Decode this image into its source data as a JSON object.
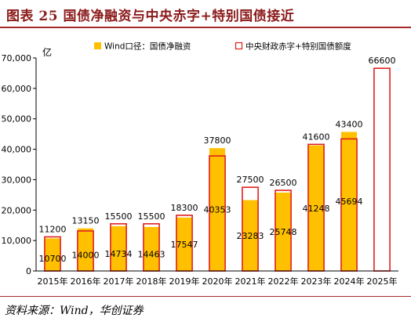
{
  "figure": {
    "title": "图表 25    国债净融资与中央赤字+特别国债接近",
    "source": "资料来源：Wind，华创证券"
  },
  "colors": {
    "title": "#8b1a1a",
    "rule": "#a52a2a",
    "bar_fill": "#ffc000",
    "outline": "#e0201e"
  },
  "chart_data": {
    "type": "bar",
    "unit_label": "亿",
    "categories": [
      "2015年",
      "2016年",
      "2017年",
      "2018年",
      "2019年",
      "2020年",
      "2021年",
      "2022年",
      "2023年",
      "2024年",
      "2025年"
    ],
    "ylim": [
      0,
      70000
    ],
    "yticks": [
      0,
      10000,
      20000,
      30000,
      40000,
      50000,
      60000,
      70000
    ],
    "ytick_labels": [
      "0",
      "10,000",
      "20,000",
      "30,000",
      "40,000",
      "50,000",
      "60,000",
      "70,000"
    ],
    "legend_position": "top",
    "series": [
      {
        "name": "Wind口径：国债净融资",
        "style": "filled",
        "values": [
          10700,
          14000,
          14734,
          14463,
          17547,
          40353,
          23283,
          25748,
          41248,
          45694,
          null
        ],
        "labels": [
          "10700",
          "14000",
          "14734",
          "14463",
          "17547",
          "40353",
          "23283",
          "25748",
          "41248",
          "45694",
          ""
        ]
      },
      {
        "name": "中央财政赤字+特别国债额度",
        "style": "outline",
        "values": [
          11200,
          13150,
          15500,
          15500,
          18300,
          37800,
          27500,
          26500,
          41600,
          43400,
          66600
        ],
        "labels": [
          "11200",
          "13150",
          "15500",
          "15500",
          "18300",
          "37800",
          "27500",
          "26500",
          "41600",
          "43400",
          "66600"
        ]
      }
    ]
  }
}
